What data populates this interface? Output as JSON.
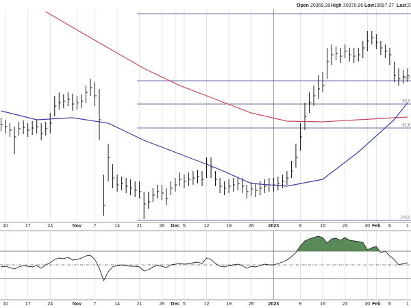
{
  "chart_data": [
    {
      "type": "ohlc",
      "header": {
        "open_label": "Open",
        "open": 20369.38,
        "high_label": "High",
        "high": 20370.96,
        "low_label": "Low",
        "low": 19597.37,
        "last_label": "Last",
        "last": "2002"
      },
      "categories": [
        null,
        "10",
        null,
        null,
        null,
        null,
        "17",
        null,
        null,
        null,
        null,
        "24",
        null,
        null,
        null,
        null,
        null,
        "Nov",
        null,
        null,
        null,
        "7",
        null,
        null,
        null,
        null,
        "14",
        null,
        null,
        null,
        null,
        "21",
        null,
        null,
        null,
        null,
        "28",
        null,
        null,
        "Dec",
        null,
        "5",
        null,
        null,
        null,
        null,
        "12",
        null,
        null,
        null,
        null,
        "19",
        null,
        null,
        null,
        null,
        "26",
        null,
        null,
        null,
        null,
        "2023",
        null,
        null,
        null,
        null,
        null,
        "9",
        null,
        null,
        null,
        null,
        "16",
        null,
        null,
        null,
        null,
        "23",
        null,
        null,
        null,
        null,
        "30",
        null,
        "Feb",
        null,
        null,
        "6",
        null,
        null,
        null,
        "1"
      ],
      "ylim": [
        15000,
        21500
      ],
      "series": [
        {
          "name": "price",
          "color": "#111111",
          "close": [
            17860,
            17800,
            17700,
            17500,
            17740,
            17780,
            17700,
            17760,
            17800,
            17600,
            17740,
            17900,
            18400,
            18500,
            18540,
            18600,
            18460,
            18500,
            18540,
            18800,
            18940,
            18700,
            18000,
            15500,
            16900,
            16300,
            16100,
            16140,
            16060,
            16000,
            15940,
            15900,
            15540,
            15600,
            15800,
            15900,
            15860,
            15700,
            16000,
            16100,
            16260,
            16200,
            16260,
            16300,
            16340,
            16260,
            16700,
            16600,
            16260,
            16060,
            16000,
            16060,
            16100,
            16140,
            16060,
            15900,
            15980,
            15940,
            16000,
            16060,
            16100,
            16100,
            16140,
            16200,
            16300,
            16500,
            16900,
            17500,
            18100,
            18500,
            18700,
            18900,
            19000,
            19700,
            19900,
            19940,
            19860,
            20000,
            19900,
            19860,
            19900,
            20100,
            20300,
            20400,
            20260,
            20100,
            20000,
            19900,
            19300,
            19200,
            19260,
            19300
          ],
          "high": [
            18060,
            18000,
            17900,
            17800,
            17940,
            17980,
            17900,
            17960,
            18000,
            17900,
            17940,
            18200,
            18700,
            18800,
            18740,
            18800,
            18760,
            18700,
            18740,
            19000,
            19200,
            19100,
            18900,
            16400,
            17300,
            16700,
            16400,
            16340,
            16300,
            16260,
            16200,
            16200,
            15900,
            15900,
            16000,
            16100,
            16100,
            16000,
            16200,
            16300,
            16460,
            16400,
            16460,
            16500,
            16540,
            16500,
            16900,
            16900,
            16500,
            16300,
            16200,
            16260,
            16300,
            16340,
            16300,
            16100,
            16180,
            16140,
            16200,
            16260,
            16300,
            16300,
            16340,
            16400,
            16500,
            16800,
            17300,
            17900,
            18500,
            18800,
            19000,
            19300,
            19400,
            20100,
            20200,
            20140,
            20100,
            20200,
            20100,
            20100,
            20100,
            20300,
            20600,
            20600,
            20500,
            20300,
            20200,
            20100,
            19700,
            19500,
            19460,
            19500
          ],
          "low": [
            17660,
            17600,
            17500,
            17000,
            17540,
            17580,
            17500,
            17560,
            17600,
            17400,
            17540,
            17600,
            18100,
            18300,
            18340,
            18400,
            18260,
            18300,
            18340,
            18500,
            18700,
            18400,
            17400,
            15200,
            16200,
            16000,
            15900,
            15940,
            15860,
            15800,
            15740,
            15700,
            15100,
            15400,
            15600,
            15700,
            15660,
            15500,
            15800,
            15900,
            16060,
            16000,
            16060,
            16100,
            16140,
            16060,
            16300,
            16300,
            16060,
            15860,
            15800,
            15860,
            15900,
            15940,
            15860,
            15700,
            15780,
            15740,
            15800,
            15860,
            15900,
            15900,
            15940,
            16000,
            16100,
            16300,
            16600,
            17100,
            17700,
            18200,
            18400,
            18600,
            18800,
            19200,
            19600,
            19740,
            19660,
            19800,
            19700,
            19660,
            19700,
            19800,
            20000,
            20200,
            20060,
            19900,
            19800,
            19600,
            19100,
            19000,
            19060,
            19100
          ]
        },
        {
          "name": "ma-long",
          "color": "#c8465a",
          "x": [
            10,
            16,
            24,
            32,
            40,
            48,
            56,
            64,
            72,
            80,
            88,
            91
          ],
          "values": [
            21160,
            20700,
            20100,
            19500,
            19000,
            18600,
            18200,
            17960,
            17940,
            18000,
            18060,
            18080
          ]
        },
        {
          "name": "ma-short",
          "color": "#3c3ca0",
          "x": [
            0,
            8,
            16,
            24,
            32,
            40,
            48,
            56,
            64,
            72,
            80,
            88,
            91
          ],
          "values": [
            18260,
            18000,
            18060,
            17900,
            17400,
            17000,
            16600,
            16140,
            16060,
            16260,
            17060,
            18000,
            18500
          ]
        }
      ],
      "levels": [
        21100,
        19140,
        18460,
        17760,
        15060
      ],
      "level_labels": [
        null,
        "38.2",
        "50.0",
        "61.8",
        "100.0"
      ],
      "level_color": "#3a3a8a"
    },
    {
      "type": "oscillator",
      "ylim": [
        0,
        100
      ],
      "levels": [
        30,
        50,
        70
      ],
      "fill_color": "#5a8a5a",
      "series": [
        {
          "name": "oscillator",
          "color": "#222222",
          "values": [
            47,
            48,
            46,
            44,
            47,
            49,
            48,
            47,
            49,
            45,
            50,
            53,
            58,
            60,
            59,
            61,
            57,
            58,
            60,
            63,
            64,
            58,
            45,
            27,
            40,
            47,
            49,
            50,
            49,
            48,
            48,
            47,
            41,
            43,
            47,
            49,
            48,
            46,
            50,
            51,
            52,
            51,
            52,
            53,
            54,
            52,
            60,
            58,
            52,
            48,
            47,
            49,
            50,
            51,
            49,
            45,
            48,
            47,
            49,
            51,
            50,
            50,
            52,
            54,
            57,
            62,
            68,
            78,
            85,
            88,
            90,
            92,
            90,
            82,
            88,
            89,
            86,
            90,
            86,
            85,
            84,
            83,
            72,
            75,
            77,
            68,
            70,
            63,
            58,
            50,
            52,
            53
          ]
        }
      ]
    }
  ]
}
